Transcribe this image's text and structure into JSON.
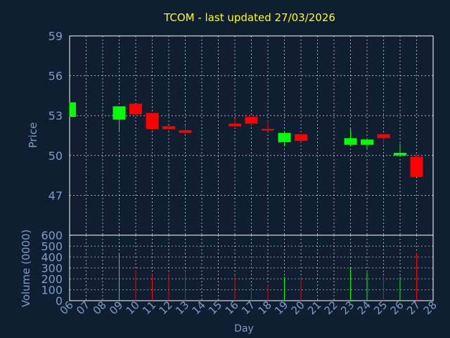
{
  "title": "TCOM - last updated 27/03/2026",
  "colors": {
    "background": "#0f1f31",
    "title": "#ffff00",
    "axis_text": "#7d9cc9",
    "grid": "#ffffff",
    "up": "#00ff00",
    "down": "#ff0000"
  },
  "chart_data": [
    {
      "type": "candlestick",
      "ylabel": "Price",
      "ylim": [
        44,
        59
      ],
      "yticks": [
        47,
        50,
        53,
        56,
        59
      ],
      "grid": true,
      "candles": [
        {
          "day": "06",
          "open": 52.9,
          "close": 54.0,
          "high": 54.0,
          "low": 52.9
        },
        {
          "day": "09",
          "open": 52.7,
          "close": 53.7,
          "high": 53.7,
          "low": 51.8
        },
        {
          "day": "10",
          "open": 53.9,
          "close": 53.1,
          "high": 53.9,
          "low": 53.0
        },
        {
          "day": "11",
          "open": 53.2,
          "close": 52.0,
          "high": 53.2,
          "low": 51.9
        },
        {
          "day": "12",
          "open": 52.2,
          "close": 52.0,
          "high": 52.2,
          "low": 51.9
        },
        {
          "day": "13",
          "open": 51.9,
          "close": 51.7,
          "high": 52.3,
          "low": 51.6
        },
        {
          "day": "16",
          "open": 52.4,
          "close": 52.2,
          "high": 52.8,
          "low": 52.2
        },
        {
          "day": "17",
          "open": 52.9,
          "close": 52.4,
          "high": 52.9,
          "low": 52.3
        },
        {
          "day": "18",
          "open": 52.0,
          "close": 51.9,
          "high": 52.6,
          "low": 51.8
        },
        {
          "day": "19",
          "open": 51.0,
          "close": 51.7,
          "high": 51.8,
          "low": 50.7
        },
        {
          "day": "20",
          "open": 51.6,
          "close": 51.1,
          "high": 51.6,
          "low": 51.0
        },
        {
          "day": "23",
          "open": 50.8,
          "close": 51.3,
          "high": 52.0,
          "low": 50.7
        },
        {
          "day": "24",
          "open": 50.8,
          "close": 51.2,
          "high": 51.2,
          "low": 50.5
        },
        {
          "day": "25",
          "open": 51.6,
          "close": 51.3,
          "high": 51.6,
          "low": 50.9
        },
        {
          "day": "26",
          "open": 50.0,
          "close": 50.2,
          "high": 50.9,
          "low": 50.0
        },
        {
          "day": "27",
          "open": 49.9,
          "close": 48.4,
          "high": 50.1,
          "low": 48.4
        }
      ]
    },
    {
      "type": "bar",
      "ylabel": "Volume (0000)",
      "ylim": [
        0,
        600
      ],
      "yticks": [
        0,
        100,
        200,
        300,
        400,
        500,
        600
      ],
      "grid": true,
      "series": [
        {
          "days": [
            "06",
            "09",
            "10",
            "11",
            "12",
            "13",
            "16",
            "17",
            "18",
            "19",
            "20",
            "23",
            "24",
            "25",
            "26",
            "27"
          ],
          "values": [
            0,
            430,
            280,
            240,
            250,
            270,
            230,
            110,
            150,
            220,
            210,
            300,
            260,
            220,
            220,
            440
          ],
          "directions": [
            "up",
            "up",
            "down",
            "down",
            "down",
            "down",
            "down",
            "down",
            "down",
            "up",
            "down",
            "up",
            "up",
            "down",
            "up",
            "down"
          ]
        }
      ]
    }
  ],
  "x_axis": {
    "label": "Day",
    "ticks": [
      "06",
      "07",
      "08",
      "09",
      "10",
      "11",
      "12",
      "13",
      "14",
      "15",
      "16",
      "17",
      "18",
      "19",
      "20",
      "21",
      "22",
      "23",
      "24",
      "25",
      "26",
      "27",
      "28"
    ]
  }
}
